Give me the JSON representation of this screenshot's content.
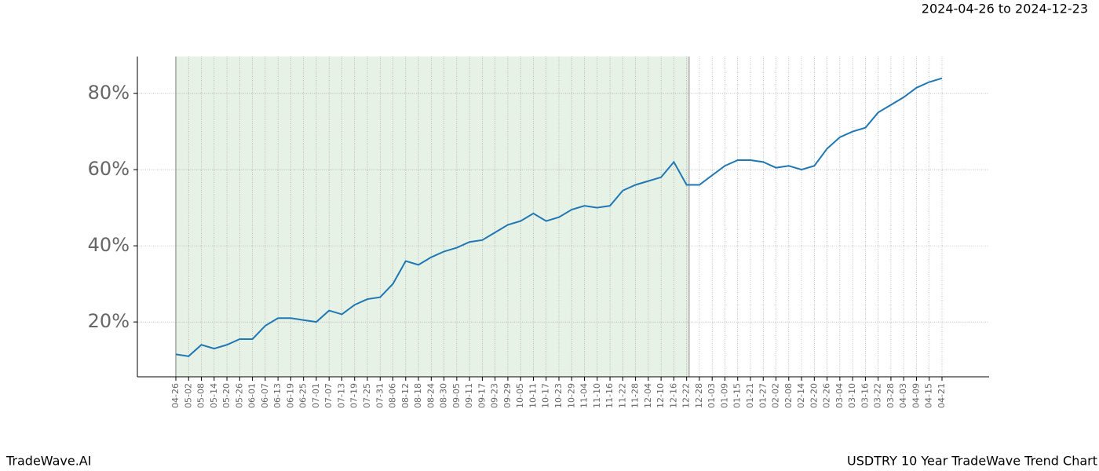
{
  "chart_data": {
    "type": "line",
    "title": "USDTRY 10 Year TradeWave Trend Chart",
    "subtitle": "2024-04-26 to 2024-12-23",
    "brand": "TradeWave.AI",
    "categories": [
      "04-26",
      "05-02",
      "05-08",
      "05-14",
      "05-20",
      "05-26",
      "06-01",
      "06-07",
      "06-13",
      "06-19",
      "06-25",
      "07-01",
      "07-07",
      "07-13",
      "07-19",
      "07-25",
      "07-31",
      "08-06",
      "08-12",
      "08-18",
      "08-24",
      "08-30",
      "09-05",
      "09-11",
      "09-17",
      "09-23",
      "09-29",
      "10-05",
      "10-11",
      "10-17",
      "10-23",
      "10-29",
      "11-04",
      "11-10",
      "11-16",
      "11-22",
      "11-28",
      "12-04",
      "12-10",
      "12-16",
      "12-22",
      "12-28",
      "01-03",
      "01-09",
      "01-15",
      "01-21",
      "01-27",
      "02-02",
      "02-08",
      "02-14",
      "02-20",
      "02-26",
      "03-04",
      "03-10",
      "03-16",
      "03-22",
      "03-28",
      "04-03",
      "04-09",
      "04-15",
      "04-21"
    ],
    "series": [
      {
        "name": "USDTRY",
        "color": "#1f77b4",
        "values": [
          11.5,
          11,
          14,
          13,
          14,
          15.5,
          15.5,
          19,
          21,
          21,
          20.5,
          20,
          23,
          22,
          24.5,
          26,
          26.5,
          30,
          36,
          35,
          37,
          38.5,
          39.5,
          41,
          41.5,
          43.5,
          45.5,
          46.5,
          48.5,
          46.5,
          47.5,
          49.5,
          50.5,
          50,
          50.5,
          54.5,
          56,
          57,
          58,
          62,
          56,
          56,
          58.5,
          61,
          62.5,
          62.5,
          62,
          60.5,
          61,
          60,
          61,
          65.5,
          68.5,
          70,
          71,
          75,
          77,
          79,
          81.5,
          83,
          84
        ]
      }
    ],
    "highlight": {
      "from": "04-26",
      "to": "12-22",
      "color": "#e6f2e6"
    },
    "ylim": [
      5.6,
      89.7
    ],
    "yticks": [
      {
        "value": 20,
        "label": "20%"
      },
      {
        "value": 40,
        "label": "40%"
      },
      {
        "value": 60,
        "label": "60%"
      },
      {
        "value": 80,
        "label": "80%"
      }
    ],
    "grid": true
  }
}
